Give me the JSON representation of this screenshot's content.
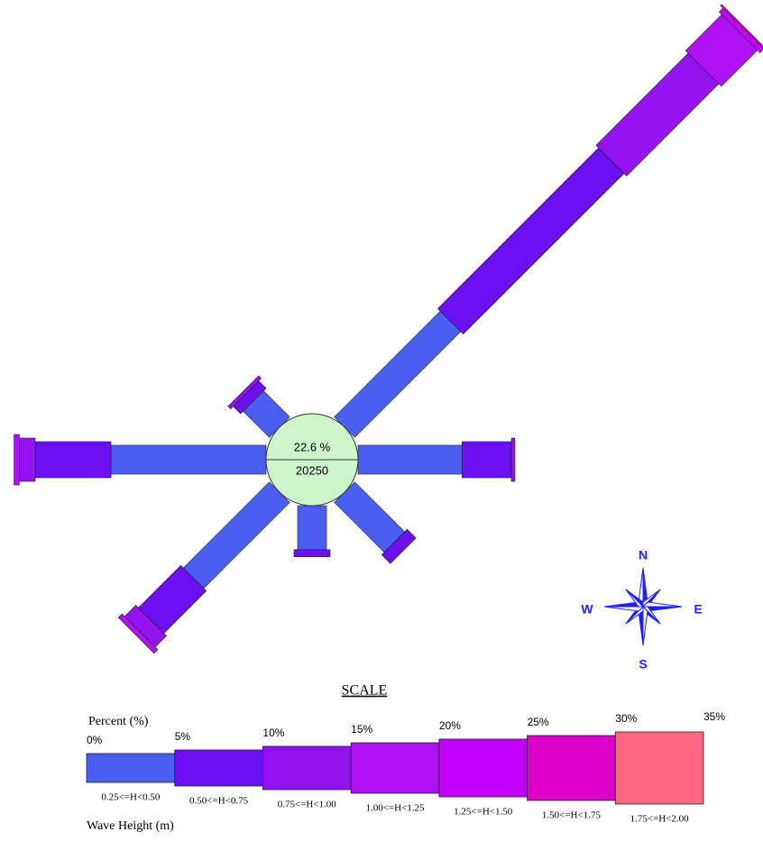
{
  "chart_data": {
    "type": "rose",
    "categories": [
      null,
      null,
      null,
      null,
      null,
      null,
      null,
      null
    ],
    "calm": {
      "value": 22.6,
      "label": "22.6 %"
    },
    "count": 20250,
    "scale_title": "SCALE",
    "x_label": "Percent (%)",
    "legend_title": "Wave Height (m)",
    "xlim": [
      0,
      35
    ],
    "xticks": [
      {
        "value": 0,
        "label": "0%"
      },
      {
        "value": 5,
        "label": "5%"
      },
      {
        "value": 10,
        "label": "10%"
      },
      {
        "value": 15,
        "label": "15%"
      },
      {
        "value": 20,
        "label": "20%"
      },
      {
        "value": 25,
        "label": "25%"
      },
      {
        "value": 30,
        "label": "30%"
      },
      {
        "value": 35,
        "label": "35%"
      }
    ],
    "compass": [
      "N",
      "E",
      "S",
      "W"
    ],
    "compass_color": "#1f1fff",
    "series": [
      {
        "name": "0.25<=H<0.50",
        "color": "#4b5ef2",
        "values": [
          0,
          8.5,
          5.9,
          4.0,
          2.5,
          6.9,
          8.8,
          2.1
        ]
      },
      {
        "name": "0.50<=H<0.75",
        "color": "#6a10f2",
        "values": [
          0,
          12.9,
          2.8,
          0.7,
          0.4,
          3.4,
          4.3,
          0.6
        ]
      },
      {
        "name": "0.75<=H<1.00",
        "color": "#9412f2",
        "values": [
          0,
          7.4,
          0.2,
          0,
          0,
          0.9,
          0.9,
          0.2
        ]
      },
      {
        "name": "1.00<=H<1.25",
        "color": "#b010f4",
        "values": [
          0,
          2.9,
          0,
          0,
          0,
          0.3,
          0.3,
          0
        ]
      },
      {
        "name": "1.25<=H<1.50",
        "color": "#c400ff",
        "values": [
          0,
          0.3,
          0,
          0,
          0,
          0,
          0,
          0
        ]
      },
      {
        "name": "1.50<=H<1.75",
        "color": "#dc00c8",
        "values": [
          0,
          0.1,
          0,
          0,
          0,
          0,
          0,
          0
        ]
      },
      {
        "name": "1.75<=H<2.00",
        "color": "#ff6680",
        "values": [
          0,
          0,
          0,
          0,
          0,
          0,
          0,
          0
        ]
      }
    ]
  }
}
